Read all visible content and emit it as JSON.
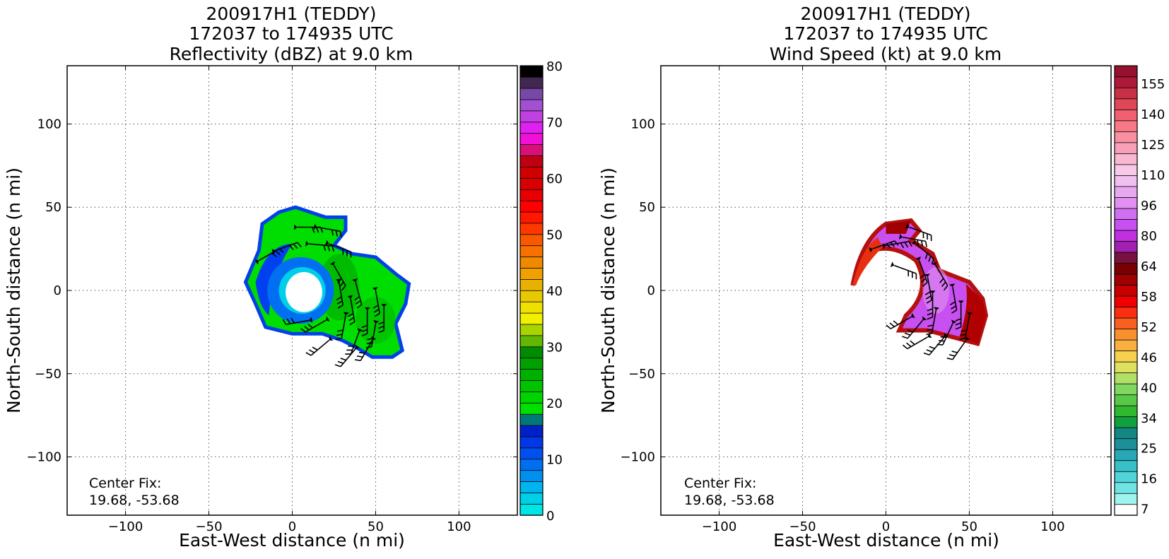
{
  "left_panel": {
    "title_line1": "200917H1 (TEDDY)",
    "title_line2": "172037 to 174935 UTC",
    "title_line3": "Reflectivity (dBZ) at 9.0 km",
    "xlabel": "East-West distance (n mi)",
    "ylabel": "North-South distance (n mi)",
    "center_fix_label": "Center Fix:",
    "center_fix_value": "19.68, -53.68",
    "colorbar_ticks": [
      "0",
      "10",
      "20",
      "30",
      "40",
      "50",
      "60",
      "70",
      "80"
    ]
  },
  "right_panel": {
    "title_line1": "200917H1 (TEDDY)",
    "title_line2": "172037 to 174935 UTC",
    "title_line3": "Wind Speed (kt) at 9.0 km",
    "xlabel": "East-West distance (n mi)",
    "ylabel": "North-South distance (n mi)",
    "center_fix_label": "Center Fix:",
    "center_fix_value": "19.68, -53.68",
    "colorbar_ticks": [
      "7",
      "16",
      "25",
      "34",
      "40",
      "46",
      "52",
      "58",
      "64",
      "80",
      "96",
      "110",
      "125",
      "140",
      "155"
    ]
  },
  "chart_data": [
    {
      "type": "heatmap",
      "title": "200917H1 (TEDDY) 172037 to 174935 UTC Reflectivity (dBZ) at 9.0 km",
      "xlabel": "East-West distance (n mi)",
      "ylabel": "North-South distance (n mi)",
      "xlim": [
        -135,
        135
      ],
      "ylim": [
        -135,
        135
      ],
      "xticks": [
        -100,
        -50,
        0,
        50,
        100
      ],
      "yticks": [
        -100,
        -50,
        0,
        50,
        100
      ],
      "grid": true,
      "colorbar_range": [
        0,
        80
      ],
      "colorbar_ticks": [
        0,
        10,
        20,
        30,
        40,
        50,
        60,
        70,
        80
      ],
      "colorbar_colors": [
        "#00e5e5",
        "#00cfe8",
        "#00b4f0",
        "#0090f0",
        "#0070f0",
        "#0050f0",
        "#0038e8",
        "#0020c8",
        "#007878",
        "#00e000",
        "#00d400",
        "#00c400",
        "#00b000",
        "#00a000",
        "#008c00",
        "#62b800",
        "#a8d400",
        "#f0f000",
        "#f0e000",
        "#e8c800",
        "#e8b000",
        "#f0a000",
        "#f08800",
        "#f87000",
        "#f85800",
        "#ff3800",
        "#ff1800",
        "#ff0000",
        "#e80000",
        "#d80000",
        "#d00000",
        "#c00010",
        "#d81078",
        "#f010d8",
        "#e020f0",
        "#c040e0",
        "#a050d0",
        "#7848a8",
        "#402850",
        "#000000"
      ],
      "center_fix": [
        19.68,
        -53.68
      ],
      "features": "Eyewall ring centered near (10, 0) with clear eye; reflectivity mostly 15-25 dBZ; wind barbs overlaid",
      "colorbar_position": "right"
    },
    {
      "type": "heatmap",
      "title": "200917H1 (TEDDY) 172037 to 174935 UTC Wind Speed (kt) at 9.0 km",
      "xlabel": "East-West distance (n mi)",
      "ylabel": "North-South distance (n mi)",
      "xlim": [
        -135,
        135
      ],
      "ylim": [
        -135,
        135
      ],
      "xticks": [
        -100,
        -50,
        0,
        50,
        100
      ],
      "yticks": [
        -100,
        -50,
        0,
        50,
        100
      ],
      "grid": true,
      "colorbar_range": [
        7,
        160
      ],
      "colorbar_ticks": [
        7,
        16,
        25,
        34,
        40,
        46,
        52,
        58,
        64,
        80,
        96,
        110,
        125,
        140,
        155
      ],
      "colorbar_colors": [
        "#ffffff",
        "#a0f4f0",
        "#70e4e4",
        "#50d4d8",
        "#38c0c8",
        "#28a8b4",
        "#1c9098",
        "#148880",
        "#10a040",
        "#30b830",
        "#58c848",
        "#80d860",
        "#b0e068",
        "#e0e060",
        "#f8d050",
        "#f8b040",
        "#f89030",
        "#f86020",
        "#f83010",
        "#f00000",
        "#c80000",
        "#a00000",
        "#780000",
        "#781040",
        "#a020b0",
        "#c030e0",
        "#c850f0",
        "#d070f0",
        "#e090f0",
        "#e8a8f0",
        "#f0c0f0",
        "#f8c8e8",
        "#f8b8d0",
        "#f8a0b8",
        "#f890a0",
        "#f87888",
        "#f06070",
        "#e04858",
        "#c83048",
        "#b01838",
        "#981030"
      ],
      "center_fix": [
        19.68,
        -53.68
      ],
      "features": "Arc of high winds wrapping from north through east to southeast of center; peak near 80-96 kt; wind barbs overlaid",
      "colorbar_position": "right"
    }
  ]
}
